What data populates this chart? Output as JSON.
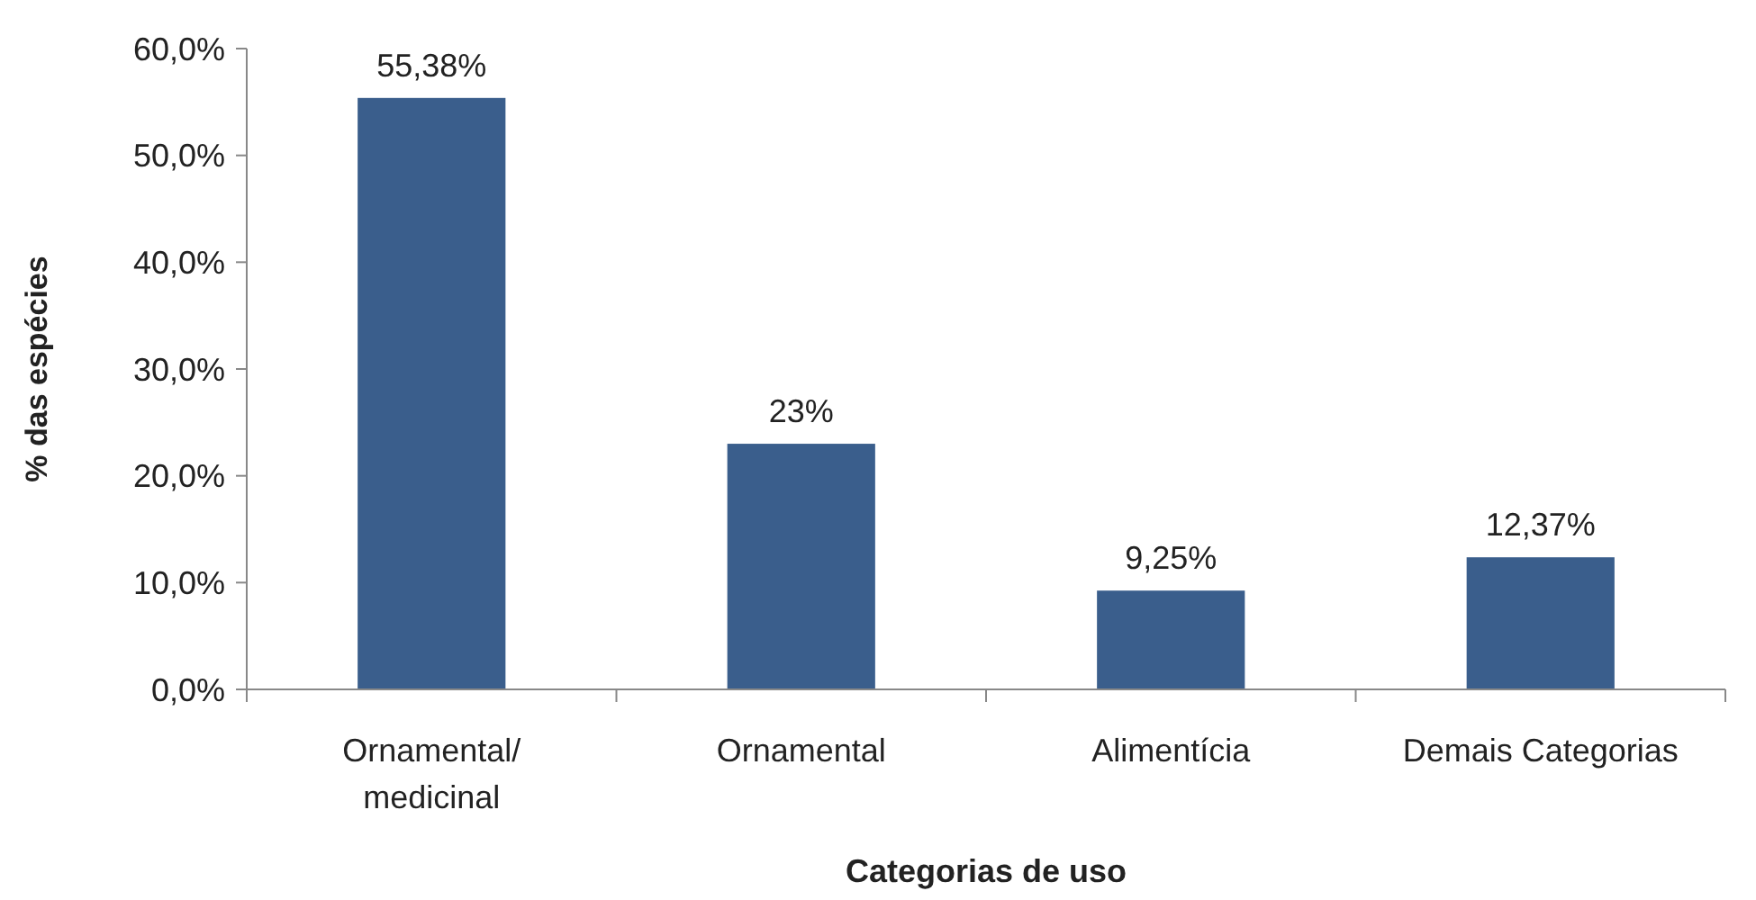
{
  "chart_data": {
    "type": "bar",
    "xlabel": "Categorias de uso",
    "ylabel": "% das espécies",
    "categories": [
      "Ornamental/\nmedicinal",
      "Ornamental",
      "Alimentícia",
      "Demais Categorias"
    ],
    "values": [
      55.38,
      23,
      9.25,
      12.37
    ],
    "value_labels": [
      "55,38%",
      "23%",
      "9,25%",
      "12,37%"
    ],
    "color": "#3a5e8c",
    "ylim": [
      0,
      60
    ],
    "yticks": [
      {
        "value": 0,
        "label": "0,0%"
      },
      {
        "value": 10,
        "label": "10,0%"
      },
      {
        "value": 20,
        "label": "20,0%"
      },
      {
        "value": 30,
        "label": "30,0%"
      },
      {
        "value": 40,
        "label": "40,0%"
      },
      {
        "value": 50,
        "label": "50,0%"
      },
      {
        "value": 60,
        "label": "60,0%"
      }
    ],
    "grid": false
  }
}
